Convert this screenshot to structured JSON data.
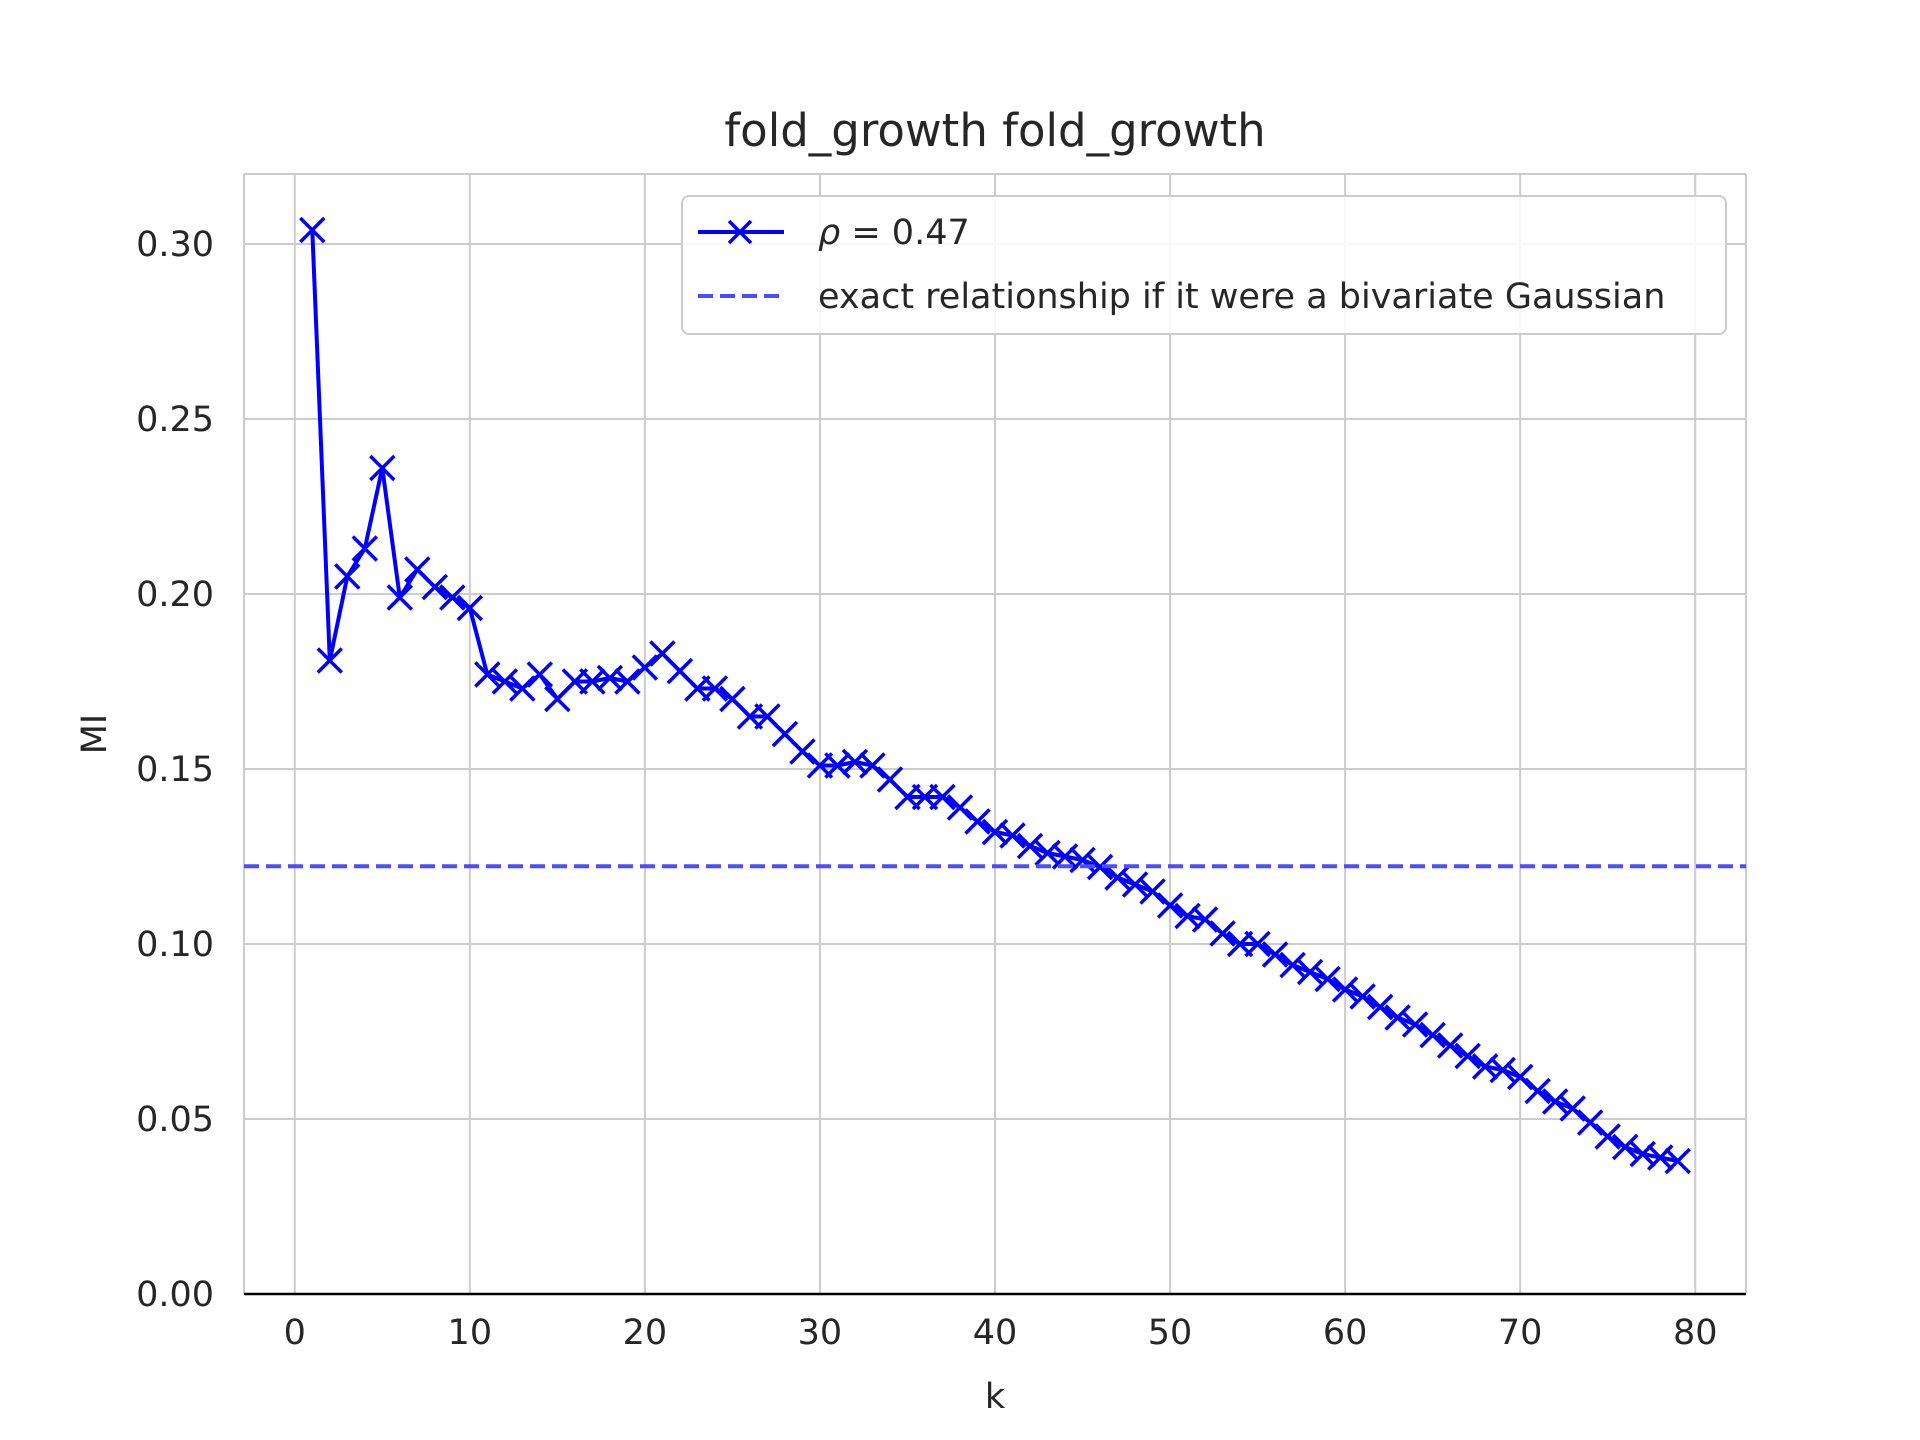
{
  "chart_data": {
    "type": "line",
    "title": "fold_growth fold_growth",
    "xlabel": "k",
    "ylabel": "MI",
    "xlim": [
      -2.9,
      82.9
    ],
    "ylim": [
      0.0,
      0.32
    ],
    "xticks": [
      0,
      10,
      20,
      30,
      40,
      50,
      60,
      70,
      80
    ],
    "xtick_labels": [
      "0",
      "10",
      "20",
      "30",
      "40",
      "50",
      "60",
      "70",
      "80"
    ],
    "yticks": [
      0.0,
      0.05,
      0.1,
      0.15,
      0.2,
      0.25,
      0.3
    ],
    "ytick_labels": [
      "0.00",
      "0.05",
      "0.10",
      "0.15",
      "0.20",
      "0.25",
      "0.30"
    ],
    "grid": true,
    "legend_position": "top-right",
    "series": [
      {
        "name": "ρ = 0.47",
        "legend_italic_prefix": "ρ",
        "legend_rest": " = 0.47",
        "color": "#0000ff",
        "marker": "x",
        "x": [
          1,
          2,
          3,
          4,
          5,
          6,
          7,
          8,
          9,
          10,
          11,
          12,
          13,
          14,
          15,
          16,
          17,
          18,
          19,
          20,
          21,
          22,
          23,
          24,
          25,
          26,
          27,
          28,
          29,
          30,
          31,
          32,
          33,
          34,
          35,
          36,
          37,
          38,
          39,
          40,
          41,
          42,
          43,
          44,
          45,
          46,
          47,
          48,
          49,
          50,
          51,
          52,
          53,
          54,
          55,
          56,
          57,
          58,
          59,
          60,
          61,
          62,
          63,
          64,
          65,
          66,
          67,
          68,
          69,
          70,
          71,
          72,
          73,
          74,
          75,
          76,
          77,
          78,
          79
        ],
        "values": [
          0.304,
          0.181,
          0.205,
          0.213,
          0.236,
          0.199,
          0.207,
          0.202,
          0.199,
          0.196,
          0.177,
          0.175,
          0.173,
          0.177,
          0.17,
          0.175,
          0.175,
          0.176,
          0.175,
          0.179,
          0.183,
          0.178,
          0.173,
          0.173,
          0.17,
          0.165,
          0.165,
          0.16,
          0.155,
          0.151,
          0.151,
          0.152,
          0.151,
          0.147,
          0.142,
          0.142,
          0.142,
          0.139,
          0.135,
          0.132,
          0.131,
          0.128,
          0.126,
          0.125,
          0.124,
          0.122,
          0.119,
          0.117,
          0.115,
          0.111,
          0.108,
          0.107,
          0.103,
          0.1,
          0.1,
          0.097,
          0.094,
          0.092,
          0.09,
          0.087,
          0.085,
          0.082,
          0.079,
          0.077,
          0.074,
          0.071,
          0.068,
          0.065,
          0.064,
          0.062,
          0.058,
          0.055,
          0.053,
          0.049,
          0.045,
          0.042,
          0.04,
          0.039,
          0.038
        ]
      },
      {
        "name": "exact relationship if it were a bivariate Gaussian",
        "color": "#4d4dff",
        "style": "dashed",
        "type": "hline",
        "y": 0.1222
      }
    ]
  }
}
